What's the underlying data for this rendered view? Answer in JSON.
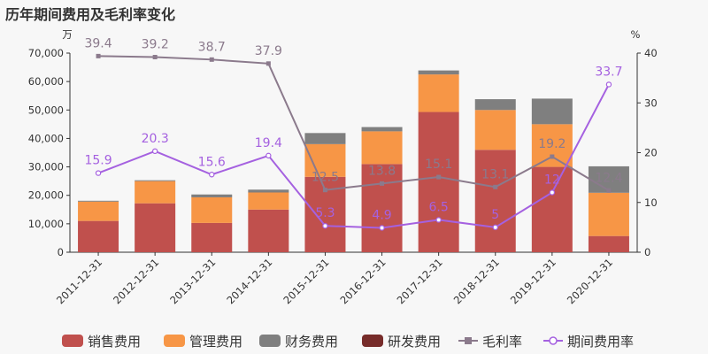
{
  "chart_data": {
    "type": "bar",
    "title": "历年期间费用及毛利率变化",
    "categories": [
      "2011-12-31",
      "2012-12-31",
      "2013-12-31",
      "2014-12-31",
      "2015-12-31",
      "2016-12-31",
      "2017-12-31",
      "2018-12-31",
      "2019-12-31",
      "2020-12-31"
    ],
    "y_left_unit": "万",
    "y_right_unit": "%",
    "ylim_left": [
      0,
      70000
    ],
    "ylim_right": [
      0,
      40
    ],
    "yticks_left": [
      "0",
      "10,000",
      "20,000",
      "30,000",
      "40,000",
      "50,000",
      "60,000",
      "70,000"
    ],
    "yticks_right": [
      "0",
      "10",
      "20",
      "30",
      "40"
    ],
    "stacked": true,
    "bar_series": [
      {
        "name": "销售费用",
        "color": "#c0504d",
        "values": [
          11000,
          17200,
          10300,
          15000,
          26500,
          31000,
          49300,
          36000,
          30000,
          5700
        ]
      },
      {
        "name": "管理费用",
        "color": "#f79646",
        "values": [
          6800,
          7800,
          9000,
          6000,
          11500,
          11500,
          13200,
          14000,
          15000,
          15200
        ]
      },
      {
        "name": "财务费用",
        "color": "#7f7f7f",
        "values": [
          300,
          300,
          1000,
          1000,
          3900,
          1500,
          1400,
          3800,
          9000,
          9300
        ]
      },
      {
        "name": "研发费用",
        "color": "#772c2a",
        "values": [
          0,
          0,
          0,
          0,
          0,
          0,
          0,
          0,
          0,
          0
        ]
      }
    ],
    "line_series": [
      {
        "name": "毛利率",
        "color": "#8b7a8c",
        "marker": "square",
        "values": [
          39.4,
          39.2,
          38.7,
          37.9,
          12.5,
          13.8,
          15.1,
          13.1,
          19.2,
          12.4
        ],
        "labels": [
          "39.4",
          "39.2",
          "38.7",
          "37.9",
          "12.5",
          "13.8",
          "15.1",
          "13.1",
          "19.2",
          "12.4"
        ]
      },
      {
        "name": "期间费用率",
        "color": "#a561e0",
        "marker": "circle",
        "values": [
          15.9,
          20.3,
          15.6,
          19.4,
          5.3,
          4.9,
          6.5,
          5.0,
          12.0,
          33.7
        ],
        "labels": [
          "15.9",
          "20.3",
          "15.6",
          "19.4",
          "5.3",
          "4.9",
          "6.5",
          "5",
          "12",
          "33.7"
        ]
      }
    ],
    "legend_position": "bottom",
    "grid": false
  }
}
